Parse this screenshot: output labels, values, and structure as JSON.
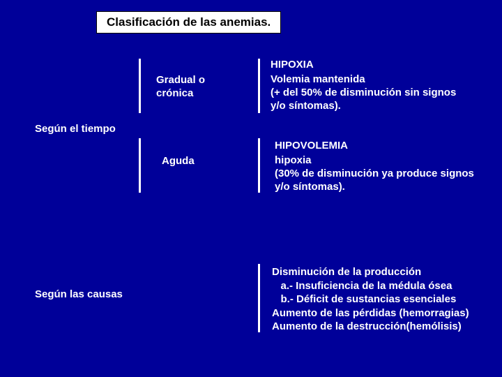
{
  "colors": {
    "background": "#000099",
    "text": "#ffffff",
    "title_bg": "#ffffff",
    "title_text": "#000000",
    "divider": "#ffffff"
  },
  "title": "Clasificación de las anemias.",
  "section1": {
    "label": "Según el tiempo",
    "branch1": {
      "mid": "Gradual o\ncrónica",
      "head": "HIPOXIA",
      "body": "Volemia mantenida\n(+ del 50% de disminución sin signos\ny/o síntomas)."
    },
    "branch2": {
      "mid": "Aguda",
      "head": "HIPOVOLEMIA",
      "body": "hipoxia\n(30% de disminución ya produce signos\ny/o síntomas)."
    }
  },
  "section2": {
    "label": "Según las causas",
    "body": "Disminución de la producción\n   a.- Insuficiencia de la médula ósea\n   b.- Déficit de sustancias esenciales\nAumento de las pérdidas (hemorragias)\nAumento de la destrucción(hemólisis)"
  }
}
